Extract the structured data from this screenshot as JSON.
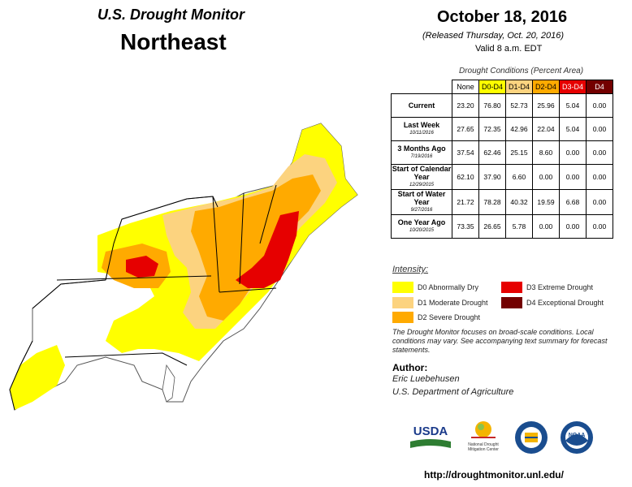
{
  "header": {
    "title": "U.S. Drought Monitor",
    "region": "Northeast",
    "date": "October 18, 2016",
    "released": "(Released Thursday, Oct. 20, 2016)",
    "valid": "Valid  8 a.m. EDT"
  },
  "conditions": {
    "title": "Drought Conditions (Percent Area)",
    "columns": [
      "None",
      "D0-D4",
      "D1-D4",
      "D2-D4",
      "D3-D4",
      "D4"
    ],
    "column_colors": [
      "#ffffff",
      "#ffff00",
      "#fcd37f",
      "#ffaa00",
      "#e60000",
      "#730000"
    ],
    "rows": [
      {
        "label": "Current",
        "date": "",
        "values": [
          "23.20",
          "76.80",
          "52.73",
          "25.96",
          "5.04",
          "0.00"
        ]
      },
      {
        "label": "Last Week",
        "date": "10/11/2016",
        "values": [
          "27.65",
          "72.35",
          "42.96",
          "22.04",
          "5.04",
          "0.00"
        ]
      },
      {
        "label": "3 Months Ago",
        "date": "7/19/2016",
        "values": [
          "37.54",
          "62.46",
          "25.15",
          "8.60",
          "0.00",
          "0.00"
        ]
      },
      {
        "label": "Start of Calendar Year",
        "date": "12/29/2015",
        "values": [
          "62.10",
          "37.90",
          "6.60",
          "0.00",
          "0.00",
          "0.00"
        ]
      },
      {
        "label": "Start of Water Year",
        "date": "9/27/2016",
        "values": [
          "21.72",
          "78.28",
          "40.32",
          "19.59",
          "6.68",
          "0.00"
        ]
      },
      {
        "label": "One Year Ago",
        "date": "10/20/2015",
        "values": [
          "73.35",
          "26.65",
          "5.78",
          "0.00",
          "0.00",
          "0.00"
        ]
      }
    ]
  },
  "legend": {
    "title": "Intensity:",
    "items": [
      {
        "label": "D0 Abnormally Dry",
        "color": "#ffff00"
      },
      {
        "label": "D1 Moderate Drought",
        "color": "#fcd37f"
      },
      {
        "label": "D2 Severe Drought",
        "color": "#ffaa00"
      },
      {
        "label": "D3 Extreme Drought",
        "color": "#e60000"
      },
      {
        "label": "D4 Exceptional Drought",
        "color": "#730000"
      }
    ]
  },
  "note": "The Drought Monitor focuses on broad-scale conditions. Local conditions may vary. See accompanying text summary for forecast statements.",
  "author": {
    "label": "Author:",
    "name": "Eric Luebehusen",
    "org": "U.S. Department of Agriculture"
  },
  "logos": {
    "usda": "USDA",
    "ndmc": "National Drought Mitigation Center",
    "noaa": "NOAA"
  },
  "url": "http://droughtmonitor.unl.edu/"
}
